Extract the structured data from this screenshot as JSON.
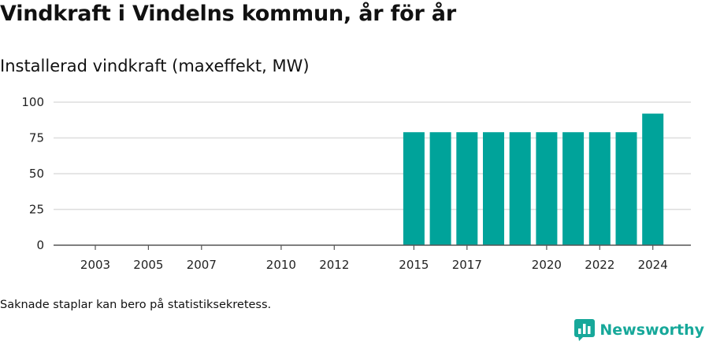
{
  "title": "Vindkraft i Vindelns kommun, år för år",
  "subtitle": "Installerad vindkraft (maxeffekt, MW)",
  "note": "Saknade staplar kan bero på statistiksekretess.",
  "brand": {
    "name": "Newsworthy",
    "icon": "newsworthy-logo-icon"
  },
  "colors": {
    "bar": "#00a39a",
    "grid": "#dddddd",
    "axis": "#555555",
    "brand": "#17a89a"
  },
  "chart_data": {
    "type": "bar",
    "x": [
      2003,
      2004,
      2005,
      2006,
      2007,
      2008,
      2009,
      2010,
      2011,
      2012,
      2013,
      2014,
      2015,
      2016,
      2017,
      2018,
      2019,
      2020,
      2021,
      2022,
      2023,
      2024
    ],
    "values": [
      0,
      0,
      0,
      0,
      0,
      0,
      0,
      0,
      0,
      0,
      0,
      0,
      79,
      79,
      79,
      79,
      79,
      79,
      79,
      79,
      79,
      92
    ],
    "x_tick_labels": [
      "2003",
      "2005",
      "2007",
      "2010",
      "2012",
      "2015",
      "2017",
      "2020",
      "2022",
      "2024"
    ],
    "y_ticks": [
      0,
      25,
      50,
      75,
      100
    ],
    "ylim": [
      0,
      100
    ],
    "xlabel": "",
    "ylabel": "",
    "grid": true
  }
}
